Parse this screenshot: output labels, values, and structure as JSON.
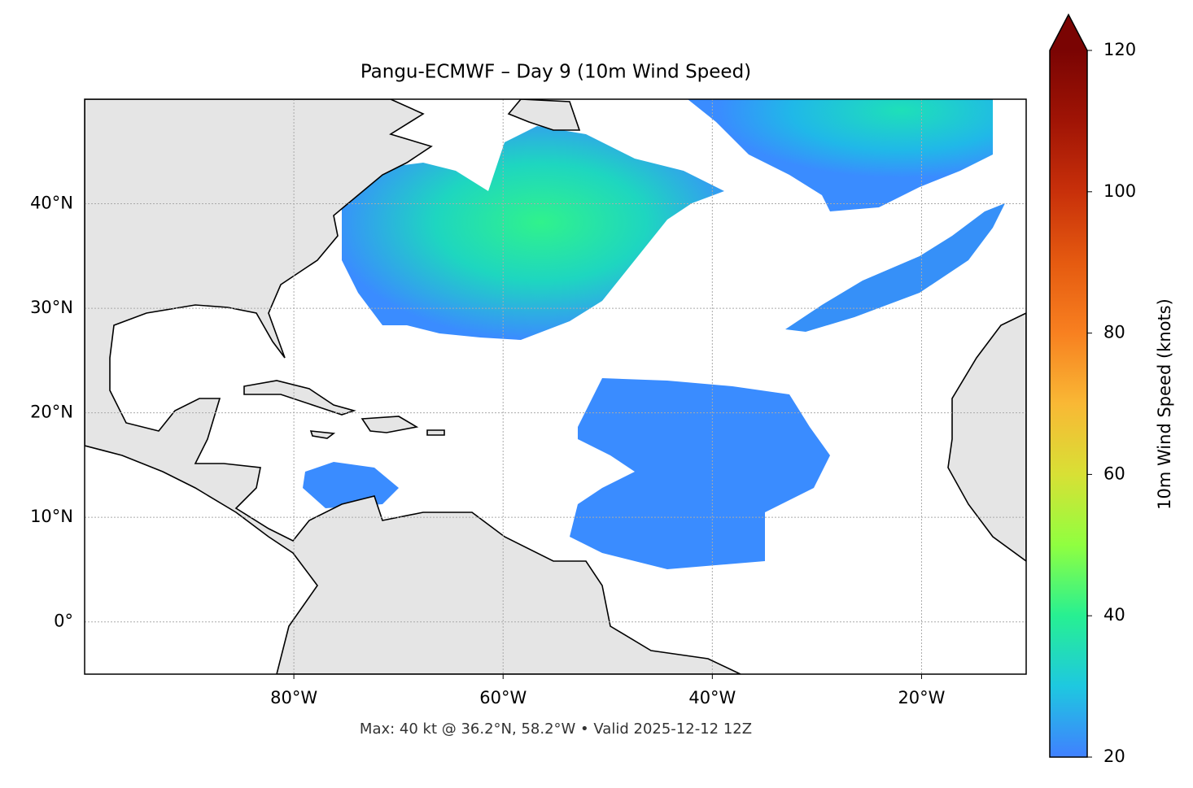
{
  "map_data": {
    "title": "Pangu-ECMWF – Day 9 (10m Wind Speed)",
    "footer": "Max: 40 kt @ 36.2°N, 58.2°W • Valid 2025-12-12 12Z",
    "xlim": [
      -100,
      -10
    ],
    "ylim": [
      -5,
      50
    ],
    "xticks": [
      {
        "value": -80,
        "label": "80°W"
      },
      {
        "value": -60,
        "label": "60°W"
      },
      {
        "value": -40,
        "label": "40°W"
      },
      {
        "value": -20,
        "label": "20°W"
      }
    ],
    "yticks": [
      {
        "value": 0,
        "label": "0°"
      },
      {
        "value": 10,
        "label": "10°N"
      },
      {
        "value": 20,
        "label": "20°N"
      },
      {
        "value": 30,
        "label": "30°N"
      },
      {
        "value": 40,
        "label": "40°N"
      }
    ],
    "grid": true,
    "colorbar": {
      "label": "10m Wind Speed (knots)",
      "lim": [
        20,
        120
      ],
      "ticks": [
        20,
        40,
        60,
        80,
        100,
        120
      ],
      "colors": [
        "#4080ff",
        "#1ec8e0",
        "#27f092",
        "#90ff40",
        "#d8e035",
        "#f9b835",
        "#f88020",
        "#e55a10",
        "#c8300a",
        "#a01405",
        "#7a0403"
      ],
      "extend": "max"
    }
  }
}
